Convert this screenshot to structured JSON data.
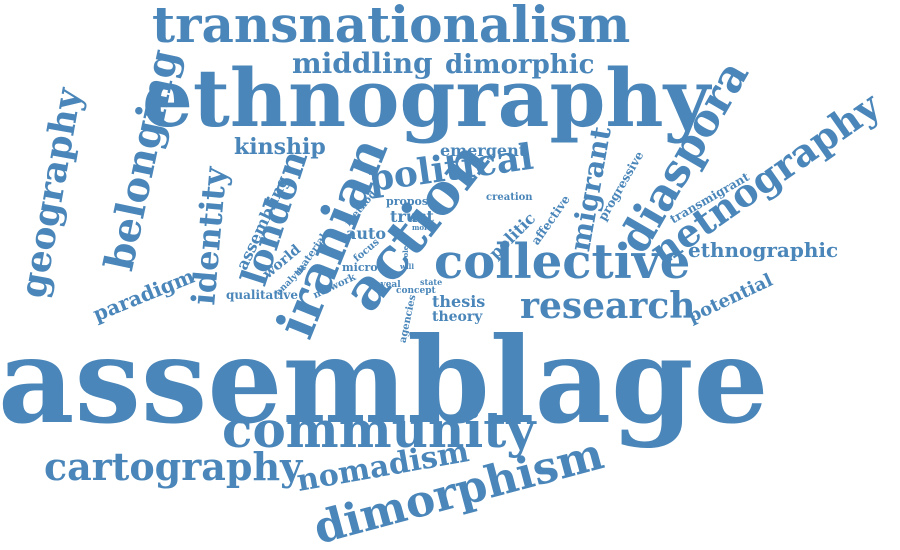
{
  "color": "#4a86b9",
  "words": [
    "assemblage",
    "ethnography",
    "transnationalism",
    "collective",
    "action",
    "iranian",
    "community",
    "dimorphism",
    "netnography",
    "diaspora",
    "belonging",
    "geography",
    "london",
    "political",
    "research",
    "cartography",
    "nomadism",
    "identity",
    "migrant",
    "middling",
    "dimorphic",
    "kinship",
    "ethnographic",
    "paradigm",
    "potential",
    "assembling",
    "emergent",
    "trust",
    "auto",
    "politic",
    "thesis",
    "theory",
    "qualitative",
    "world",
    "progressive",
    "transmigrant",
    "propose",
    "creation",
    "affective",
    "material",
    "method",
    "focus",
    "analytic",
    "micro",
    "network",
    "reveal",
    "concept",
    "agencies",
    "state",
    "more",
    "role",
    "will"
  ]
}
